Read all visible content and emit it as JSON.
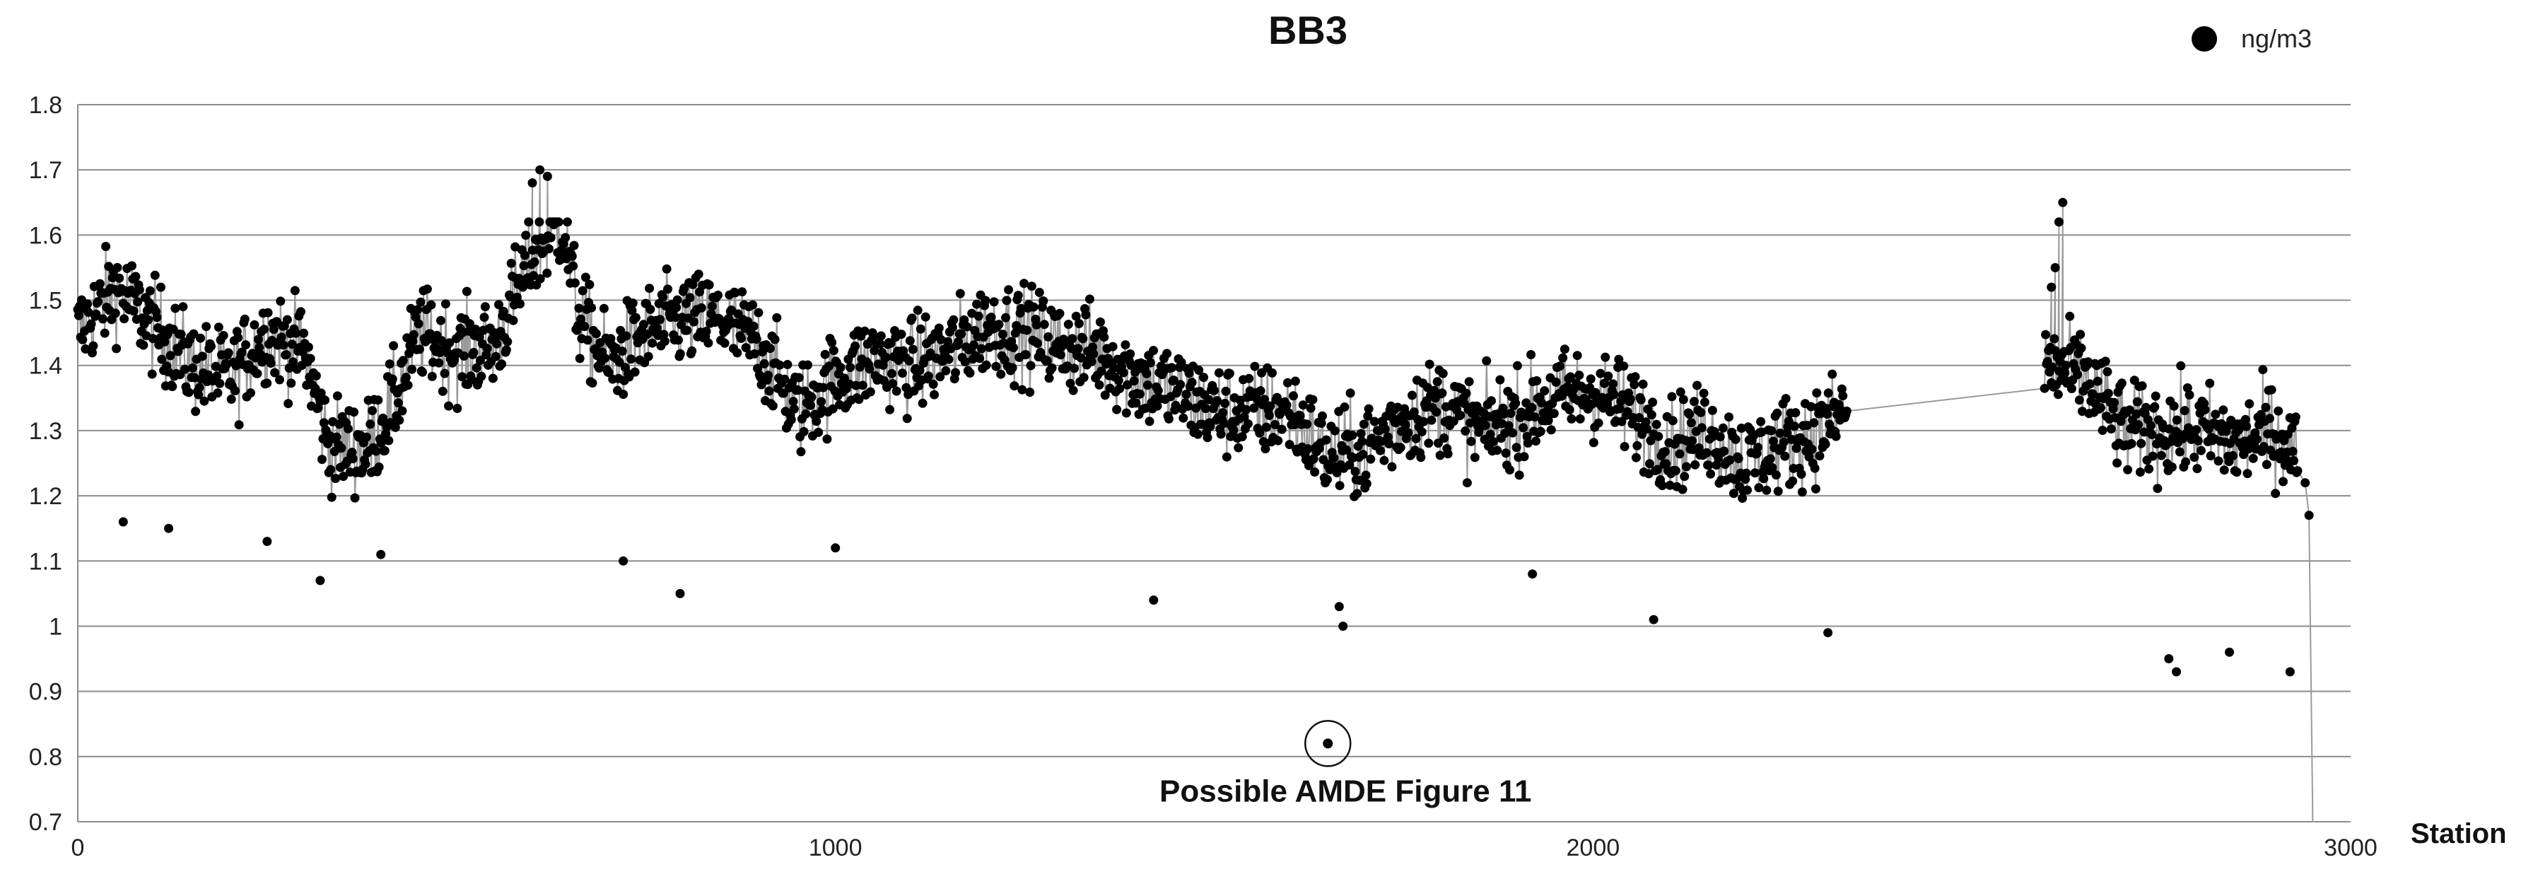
{
  "chart_data": {
    "type": "scatter",
    "title": "BB3",
    "xlabel": "Station",
    "ylabel": "",
    "xlim": [
      0,
      3000
    ],
    "ylim": [
      0.7,
      1.8
    ],
    "x_ticks": [
      0,
      1000,
      2000,
      3000
    ],
    "y_ticks": [
      0.7,
      0.8,
      0.9,
      1,
      1.1,
      1.2,
      1.3,
      1.4,
      1.5,
      1.6,
      1.7,
      1.8
    ],
    "y_tick_labels": [
      "0.7",
      "0.8",
      "0.9",
      "1",
      "1.1",
      "1.2",
      "1.3",
      "1.4",
      "1.5",
      "1.6",
      "1.7",
      "1.8"
    ],
    "x_tick_labels": [
      "0",
      "1000",
      "2000",
      "3000"
    ],
    "grid": "horizontal",
    "legend_position": "top-right",
    "series": [
      {
        "name": "ng/m3",
        "marker": "circle",
        "color": "#000000",
        "connector_color": "#9a9a9a",
        "trend": [
          [
            0,
            1.45
          ],
          [
            50,
            1.52
          ],
          [
            100,
            1.46
          ],
          [
            150,
            1.4
          ],
          [
            200,
            1.38
          ],
          [
            250,
            1.45
          ],
          [
            300,
            1.42
          ],
          [
            330,
            1.28
          ],
          [
            380,
            1.27
          ],
          [
            420,
            1.35
          ],
          [
            450,
            1.45
          ],
          [
            500,
            1.42
          ],
          [
            550,
            1.43
          ],
          [
            600,
            1.57
          ],
          [
            640,
            1.62
          ],
          [
            660,
            1.48
          ],
          [
            700,
            1.4
          ],
          [
            750,
            1.45
          ],
          [
            800,
            1.47
          ],
          [
            850,
            1.47
          ],
          [
            900,
            1.43
          ],
          [
            950,
            1.33
          ],
          [
            1000,
            1.38
          ],
          [
            1050,
            1.41
          ],
          [
            1100,
            1.4
          ],
          [
            1150,
            1.42
          ],
          [
            1200,
            1.46
          ],
          [
            1250,
            1.45
          ],
          [
            1300,
            1.43
          ],
          [
            1350,
            1.42
          ],
          [
            1400,
            1.38
          ],
          [
            1450,
            1.36
          ],
          [
            1500,
            1.33
          ],
          [
            1550,
            1.33
          ],
          [
            1600,
            1.33
          ],
          [
            1650,
            1.26
          ],
          [
            1700,
            1.27
          ],
          [
            1750,
            1.32
          ],
          [
            1800,
            1.34
          ],
          [
            1850,
            1.3
          ],
          [
            1900,
            1.32
          ],
          [
            1950,
            1.35
          ],
          [
            2000,
            1.36
          ],
          [
            2050,
            1.33
          ],
          [
            2100,
            1.28
          ],
          [
            2150,
            1.3
          ],
          [
            2200,
            1.25
          ],
          [
            2250,
            1.28
          ],
          [
            2300,
            1.3
          ],
          [
            2330,
            1.33
          ],
          [
            2600,
            1.4
          ],
          [
            2650,
            1.38
          ],
          [
            2700,
            1.3
          ],
          [
            2750,
            1.3
          ],
          [
            2800,
            1.3
          ],
          [
            2850,
            1.28
          ],
          [
            2900,
            1.3
          ],
          [
            2930,
            1.26
          ]
        ],
        "spread": 0.07,
        "count": 2300,
        "gap": [
          2335,
          2595
        ],
        "spikes": [
          [
            2620,
            1.65
          ],
          [
            2615,
            1.62
          ],
          [
            2610,
            1.55
          ],
          [
            2605,
            1.52
          ],
          [
            610,
            1.7
          ],
          [
            620,
            1.69
          ],
          [
            600,
            1.68
          ],
          [
            2940,
            1.22
          ],
          [
            2945,
            1.17
          ],
          [
            2950,
            0.7
          ]
        ],
        "outliers": [
          [
            1650,
            0.82
          ],
          [
            1670,
            1.0
          ],
          [
            1665,
            1.03
          ],
          [
            2310,
            0.99
          ],
          [
            2080,
            1.01
          ],
          [
            2840,
            0.96
          ],
          [
            2920,
            0.93
          ],
          [
            2770,
            0.93
          ],
          [
            2760,
            0.95
          ],
          [
            795,
            1.05
          ],
          [
            320,
            1.07
          ],
          [
            1420,
            1.04
          ],
          [
            1000,
            1.12
          ],
          [
            1920,
            1.08
          ],
          [
            720,
            1.1
          ],
          [
            400,
            1.11
          ],
          [
            120,
            1.15
          ],
          [
            60,
            1.16
          ],
          [
            250,
            1.13
          ]
        ]
      }
    ],
    "annotations": [
      {
        "text": "Possible AMDE Figure 11",
        "x": 1650,
        "y": 0.82,
        "style": "circle"
      }
    ]
  }
}
